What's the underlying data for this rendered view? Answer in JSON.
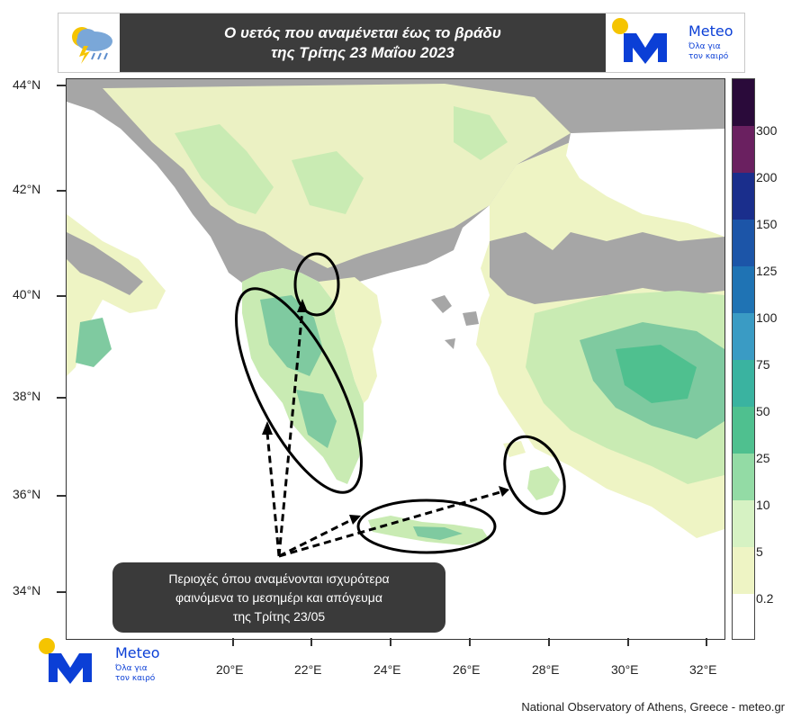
{
  "header": {
    "title_line1": "Ο υετός που αναμένεται έως το βράδυ",
    "title_line2": "της Τρίτης 23 Μαΐου 2023",
    "weather_icon": "rain-cloud-lightning-icon"
  },
  "logo_top": {
    "name": "Meteo",
    "tagline": "Όλα για\nτον καιρό",
    "accent": "#f5c400",
    "brand": "#0b3fd6"
  },
  "logo_bottom": {
    "name": "Meteo",
    "tagline": "Όλα για\nτον καιρό"
  },
  "map": {
    "lat_labels": [
      "44°N",
      "42°N",
      "40°N",
      "38°N",
      "36°N",
      "34°N"
    ],
    "lon_labels": [
      "20°E",
      "22°E",
      "24°E",
      "26°E",
      "28°E",
      "30°E",
      "32°E"
    ],
    "colors": {
      "sea": "#ffffff",
      "land_dry": "#a6a6a6",
      "land_light": "#eef4c4",
      "land_wet": "#c9ebb3",
      "land_heavy": "#7fcaa0"
    }
  },
  "colorbar": {
    "labels": [
      "300",
      "200",
      "150",
      "125",
      "100",
      "75",
      "50",
      "25",
      "10",
      "5",
      "0.2"
    ],
    "colors": [
      "#2a0a3a",
      "#6a2060",
      "#1a2e8c",
      "#1c55a8",
      "#1f73b4",
      "#3a9bc4",
      "#3ab3a0",
      "#4fc08f",
      "#93dba5",
      "#d6f2c3",
      "#eef4c4",
      "#ffffff"
    ]
  },
  "callout": {
    "line1": "Περιοχές όπου αναμένονται ισχυρότερα",
    "line2": "φαινόμενα το μεσημέρι και απόγευμα",
    "line3": "της Τρίτης 23/05"
  },
  "source": "National Observatory of Athens, Greece - meteo.gr"
}
